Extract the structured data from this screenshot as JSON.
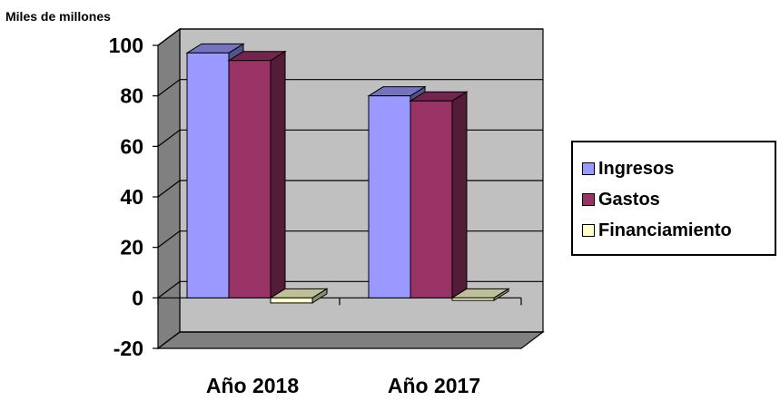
{
  "chart_data": {
    "type": "bar",
    "unit_label": "Miles de millones",
    "categories": [
      "Año 2018",
      "Año 2017"
    ],
    "series": [
      {
        "name": "Ingresos",
        "values": [
          97,
          80
        ],
        "color": "#9999ff"
      },
      {
        "name": "Gastos",
        "values": [
          94,
          78
        ],
        "color": "#993366"
      },
      {
        "name": "Financiamiento",
        "values": [
          -2,
          -1
        ],
        "color": "#ffffcc"
      }
    ],
    "y_ticks": [
      "100",
      "80",
      "60",
      "40",
      "20",
      "0",
      "-20"
    ],
    "ylim": [
      -20,
      100
    ],
    "grid": true,
    "legend_position": "right",
    "wall_color": "#c0c0c0",
    "floor_color": "#808080"
  }
}
